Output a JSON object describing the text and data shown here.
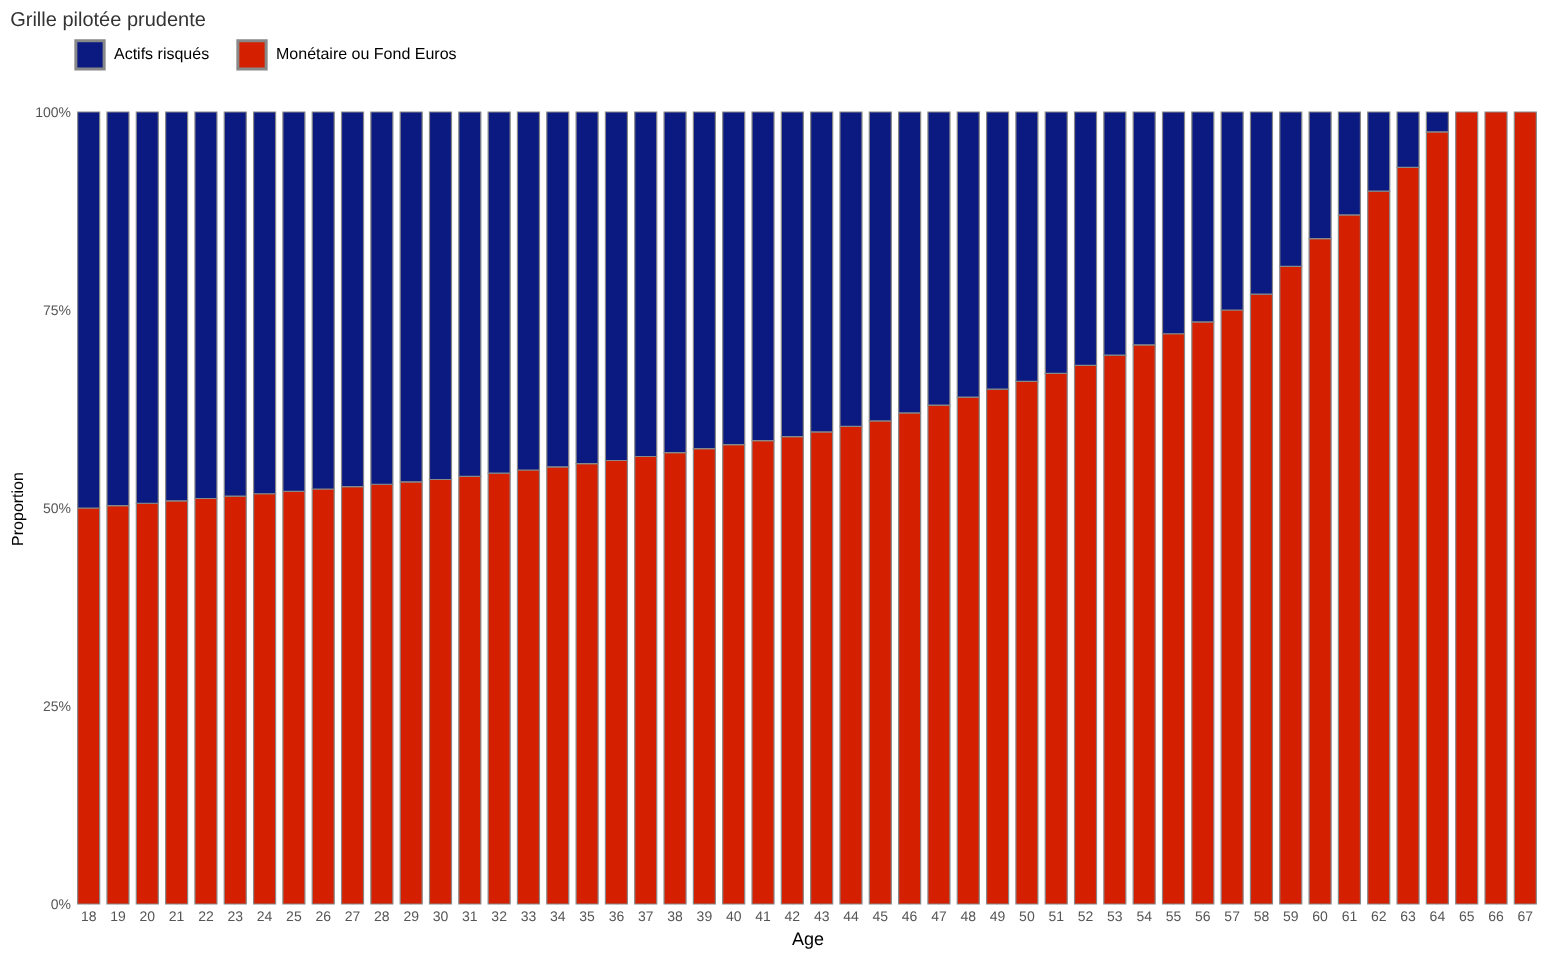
{
  "chart_data": {
    "type": "bar",
    "title": "Grille pilotée prudente",
    "xlabel": "Age",
    "ylabel": "Proportion",
    "categories": [
      "18",
      "19",
      "20",
      "21",
      "22",
      "23",
      "24",
      "25",
      "26",
      "27",
      "28",
      "29",
      "30",
      "31",
      "32",
      "33",
      "34",
      "35",
      "36",
      "37",
      "38",
      "39",
      "40",
      "41",
      "42",
      "43",
      "44",
      "45",
      "46",
      "47",
      "48",
      "49",
      "50",
      "51",
      "52",
      "53",
      "54",
      "55",
      "56",
      "57",
      "58",
      "59",
      "60",
      "61",
      "62",
      "63",
      "64",
      "65",
      "66",
      "67"
    ],
    "stacked": true,
    "series": [
      {
        "name": "Monétaire ou Fond Euros",
        "color": "#d42000",
        "values": [
          50,
          50.3,
          50.6,
          50.9,
          51.2,
          51.5,
          51.8,
          52.1,
          52.4,
          52.7,
          53,
          53.3,
          53.6,
          54,
          54.4,
          54.8,
          55.2,
          55.6,
          56,
          56.5,
          57,
          57.5,
          58,
          58.5,
          59,
          59.6,
          60.3,
          61,
          62,
          63,
          64,
          65,
          66,
          67,
          68,
          69.3,
          70.6,
          72,
          73.5,
          75,
          77,
          80.5,
          84,
          87,
          90,
          93,
          97.5,
          100,
          100,
          100
        ]
      },
      {
        "name": "Actifs risqués",
        "color": "#0a1a80",
        "values": [
          50,
          49.7,
          49.4,
          49.1,
          48.8,
          48.5,
          48.2,
          47.9,
          47.6,
          47.3,
          47,
          46.7,
          46.4,
          46,
          45.6,
          45.2,
          44.8,
          44.4,
          44,
          43.5,
          43,
          42.5,
          42,
          41.5,
          41,
          40.4,
          39.7,
          39,
          38,
          37,
          36,
          35,
          34,
          33,
          32,
          30.7,
          29.4,
          28,
          26.5,
          25,
          23,
          19.5,
          16,
          13,
          10,
          7,
          2.5,
          0,
          0,
          0
        ]
      }
    ],
    "ylim": [
      0,
      100
    ],
    "yticks": [
      {
        "value": 0,
        "label": "0%"
      },
      {
        "value": 25,
        "label": "25%"
      },
      {
        "value": 50,
        "label": "50%"
      },
      {
        "value": 75,
        "label": "75%"
      },
      {
        "value": 100,
        "label": "100%"
      }
    ],
    "grid": "x",
    "legend": "top"
  }
}
